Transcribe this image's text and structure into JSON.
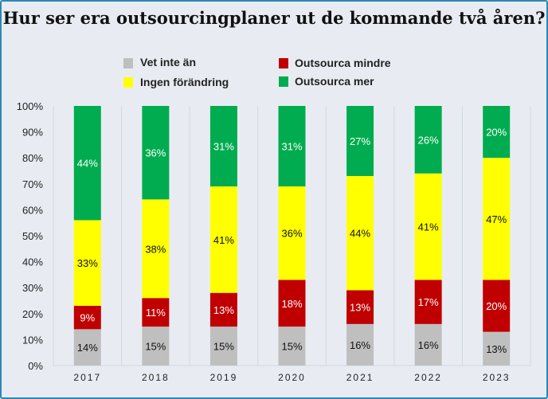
{
  "chart_data": {
    "type": "bar",
    "stacked": true,
    "title": "Hur ser era outsourcingplaner ut de kommande två åren?",
    "xlabel": "",
    "ylabel": "",
    "ylim": [
      0,
      100
    ],
    "yticks": [
      "0%",
      "10%",
      "20%",
      "30%",
      "40%",
      "50%",
      "60%",
      "70%",
      "80%",
      "90%",
      "100%"
    ],
    "categories": [
      "2017",
      "2018",
      "2019",
      "2020",
      "2021",
      "2022",
      "2023"
    ],
    "series": [
      {
        "name": "Vet inte än",
        "color": "#bfbfbf",
        "label_color": "#111111",
        "values": [
          14,
          15,
          15,
          15,
          16,
          16,
          13
        ]
      },
      {
        "name": "Outsourca mindre",
        "color": "#c00000",
        "label_color": "#ffffff",
        "values": [
          9,
          11,
          13,
          18,
          13,
          17,
          20
        ]
      },
      {
        "name": "Ingen förändring",
        "color": "#ffff00",
        "label_color": "#111111",
        "values": [
          33,
          38,
          41,
          36,
          44,
          41,
          47
        ]
      },
      {
        "name": "Outsourca mer",
        "color": "#00ac4f",
        "label_color": "#ffffff",
        "values": [
          44,
          36,
          31,
          31,
          27,
          26,
          20
        ]
      }
    ],
    "legend": "top",
    "grid": false
  }
}
